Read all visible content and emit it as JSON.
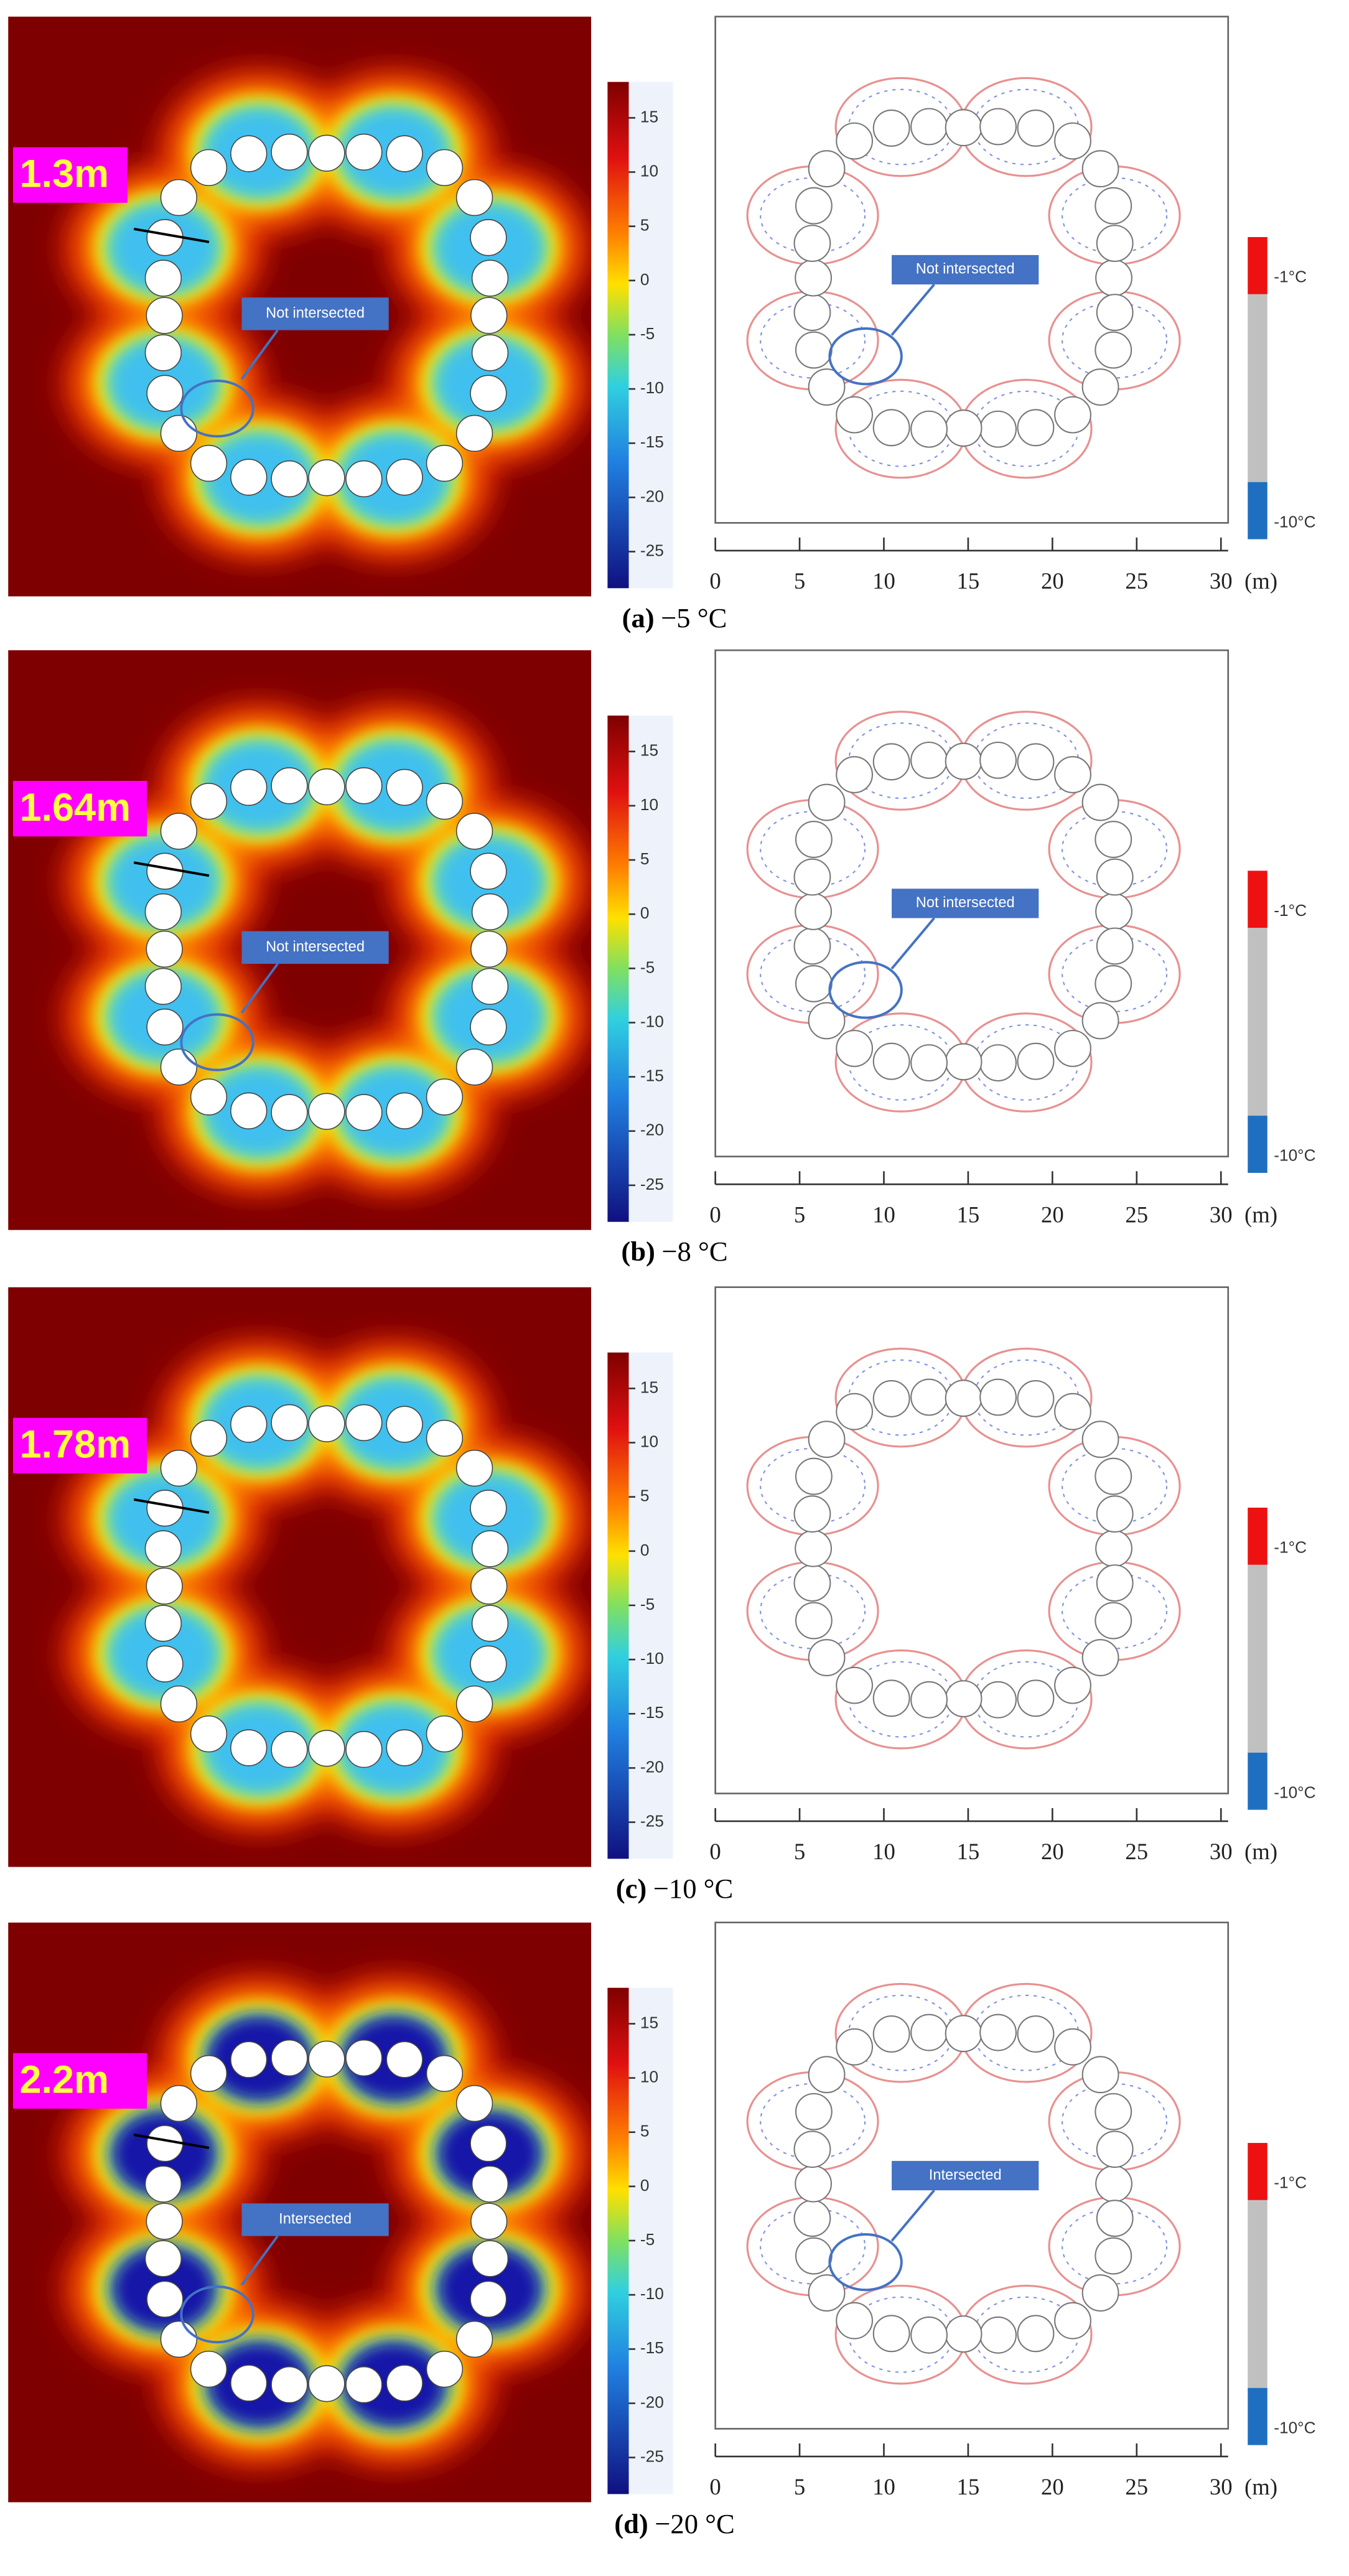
{
  "panels": [
    {
      "label": "(a)",
      "caption": "−5 °C",
      "thickness": "1.3m",
      "annotation": "Not intersected"
    },
    {
      "label": "(b)",
      "caption": "−8 °C",
      "thickness": "1.64m",
      "annotation": "Not intersected"
    },
    {
      "label": "(c)",
      "caption": "−10 °C",
      "thickness": "1.78m"
    },
    {
      "label": "(d)",
      "caption": "−20 °C",
      "thickness": "2.2m",
      "annotation": "Intersected"
    }
  ],
  "colorbar": {
    "ticks": [
      "15",
      "10",
      "5",
      "0",
      "-5",
      "-10",
      "-15",
      "-20",
      "-25"
    ]
  },
  "axis": {
    "ticks": [
      "0",
      "5",
      "10",
      "15",
      "20",
      "25",
      "30"
    ],
    "unit": "(m)"
  },
  "legend": {
    "labels": [
      "-1°C",
      "-10°C"
    ]
  }
}
